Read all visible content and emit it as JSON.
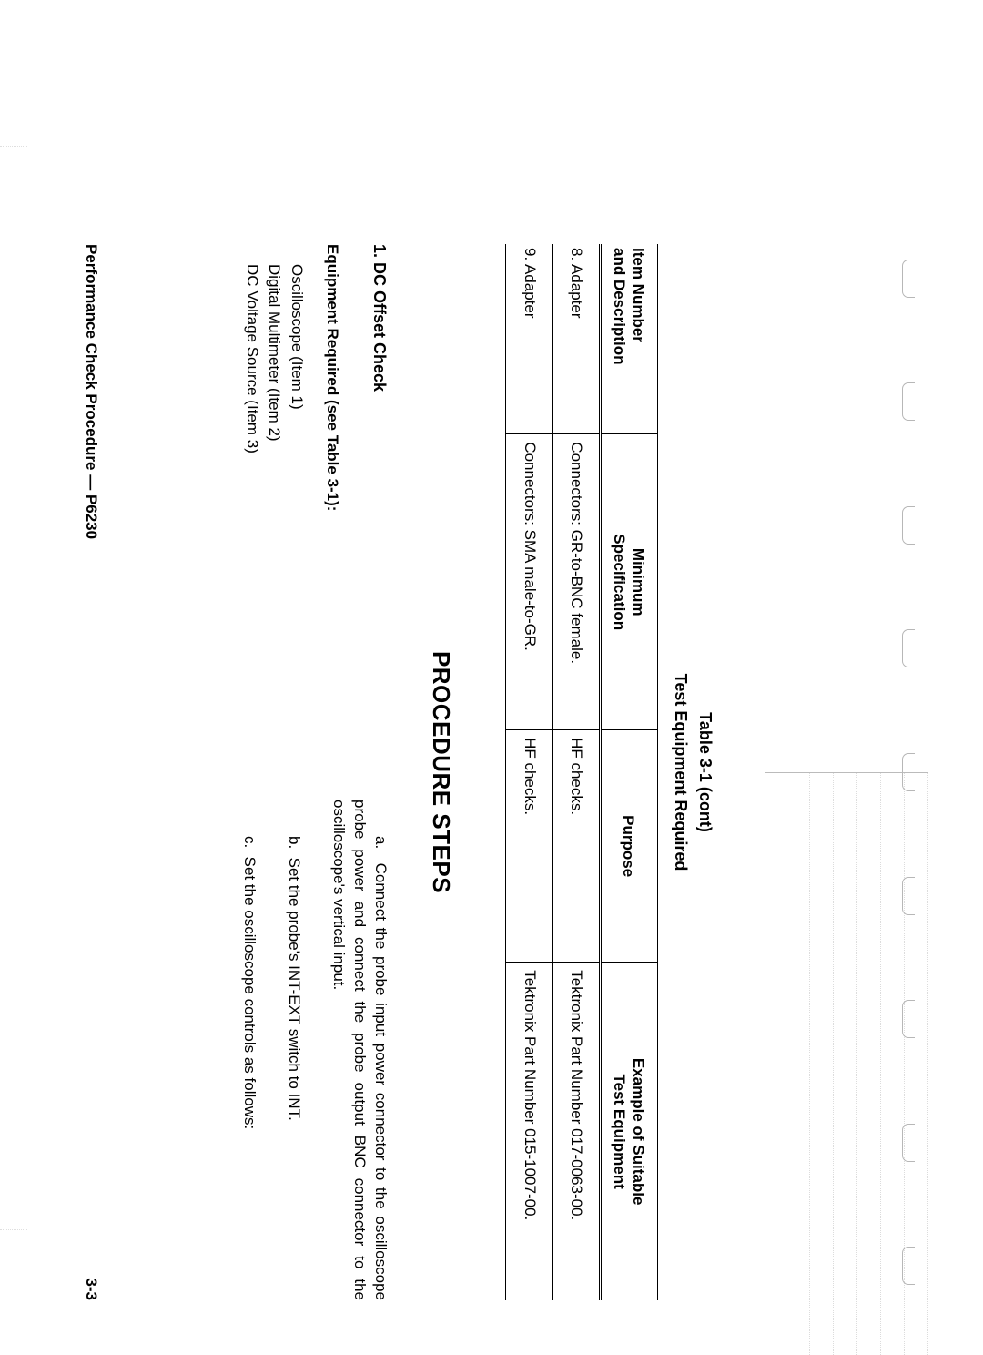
{
  "tableTitle": "Table 3-1 (cont)",
  "tableSubtitle": "Test Equipment Required",
  "headers": {
    "c1a": "Item Number",
    "c1b": "and Description",
    "c2a": "Minimum",
    "c2b": "Specification",
    "c3": "Purpose",
    "c4a": "Example of Suitable",
    "c4b": "Test Equipment"
  },
  "rows": [
    {
      "item": "8. Adapter",
      "spec": "Connectors: GR-to-BNC female.",
      "purpose": "HF checks.",
      "example": "Tektronix Part Number 017-0063-00."
    },
    {
      "item": "9. Adapter",
      "spec": "Connectors: SMA male-to-GR.",
      "purpose": "HF checks.",
      "example": "Tektronix Part Number 015-1007-00."
    }
  ],
  "procHeading": "PROCEDURE STEPS",
  "checkTitle": "1. DC Offset Check",
  "equipReq": "Equipment Required (see Table 3-1):",
  "equipList": [
    "Oscilloscope (Item 1)",
    "Digital Multimeter (Item 2)",
    "DC Voltage Source (Item 3)"
  ],
  "steps": {
    "a": "Connect the probe input power connector to the oscilloscope probe power and connect the probe output BNC connector to the oscilloscope's vertical input.",
    "b": "Set the probe's INT-EXT switch to INT.",
    "c": "Set the oscilloscope controls as follows:"
  },
  "footerLeft": "Performance Check Procedure — P6230",
  "footerRight": "3-3",
  "colors": {
    "text": "#000000",
    "background": "#ffffff",
    "border": "#000000",
    "faint": "#bbbbbb"
  }
}
